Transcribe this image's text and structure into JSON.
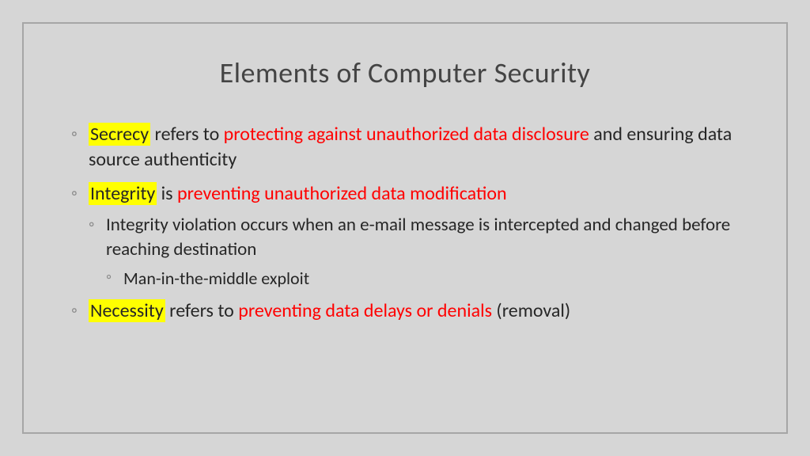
{
  "title": "Elements of Computer Security",
  "colors": {
    "background": "#d6d6d6",
    "frame_border": "#a6a6a6",
    "title_text": "#444444",
    "body_text": "#262626",
    "highlight_bg": "#ffff00",
    "emphasis_text": "#ff0000",
    "bullet": "#8a8a8a"
  },
  "typography": {
    "title_fontsize": 36,
    "body_fontsize": 24,
    "font_family": "Gill Sans"
  },
  "bullets": [
    {
      "term": "Secrecy",
      "mid": " refers to ",
      "emph": "protecting against unauthorized data disclosure",
      "rest": " and ensuring data source authenticity"
    },
    {
      "term": "Integrity",
      "mid": " is ",
      "emph": "preventing unauthorized data modification",
      "rest": "",
      "sub": {
        "text": "Integrity violation occurs when an e-mail message is intercepted and changed before reaching destination",
        "sub": {
          "text": "Man-in-the-middle exploit"
        }
      }
    },
    {
      "term": "Necessity",
      "mid": " refers to ",
      "emph": "preventing data delays or denials",
      "rest": " (removal)"
    }
  ]
}
